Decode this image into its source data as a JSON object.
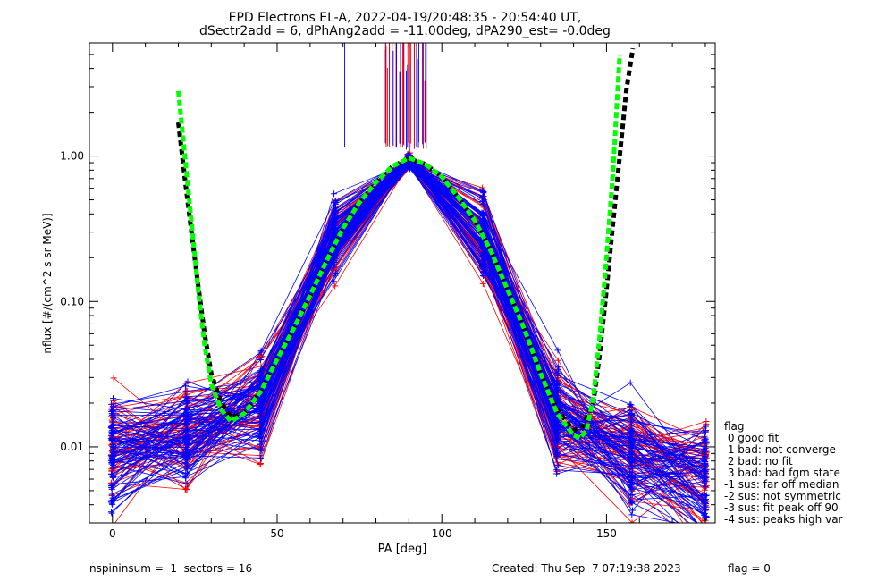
{
  "chart_data": {
    "type": "scatter",
    "title_lines": [
      "EPD Electrons EL-A, 2022-04-19/20:48:35 - 20:54:40 UT,",
      "dSectr2add = 6, dPhAng2add = -11.00deg, dPA290_est=  -0.0deg"
    ],
    "xlabel": "PA [deg]",
    "ylabel": "nflux [#/(cm^2 s sr MeV)]",
    "xlim": [
      -7,
      183
    ],
    "ylim": [
      0.003,
      6.0
    ],
    "yscale": "log",
    "x_ticks": [
      0,
      50,
      100,
      150
    ],
    "x_tick_labels": [
      "0",
      "50",
      "100",
      "150"
    ],
    "y_ticks": [
      0.01,
      0.1,
      1.0
    ],
    "y_tick_labels": [
      "0.01",
      "0.10",
      "1.00"
    ],
    "colors": {
      "series_a": "#ff0000",
      "series_b": "#0000ff",
      "fit_black": "#000000",
      "fit_green": "#00ff00"
    },
    "fit_black": {
      "x": [
        20,
        22,
        24,
        26,
        28,
        30,
        33,
        36,
        40,
        45,
        50,
        55,
        60,
        65,
        70,
        75,
        80,
        85,
        90,
        95,
        100,
        105,
        110,
        115,
        120,
        125,
        130,
        135,
        140,
        143,
        146,
        148,
        150,
        152,
        154,
        156,
        158
      ],
      "y": [
        1.7,
        0.7,
        0.3,
        0.13,
        0.06,
        0.032,
        0.02,
        0.016,
        0.017,
        0.024,
        0.04,
        0.065,
        0.11,
        0.19,
        0.32,
        0.48,
        0.66,
        0.85,
        0.96,
        0.88,
        0.72,
        0.52,
        0.36,
        0.22,
        0.12,
        0.065,
        0.032,
        0.018,
        0.013,
        0.014,
        0.02,
        0.045,
        0.12,
        0.35,
        1.0,
        2.8,
        5.5
      ]
    },
    "fit_green": {
      "x": [
        20,
        22,
        24,
        26,
        28,
        30,
        33,
        36,
        40,
        45,
        50,
        55,
        60,
        65,
        70,
        75,
        80,
        85,
        90,
        95,
        100,
        105,
        110,
        115,
        120,
        125,
        130,
        135,
        140,
        142,
        144,
        146,
        148,
        150,
        152,
        154
      ],
      "y": [
        2.8,
        1.0,
        0.35,
        0.12,
        0.05,
        0.027,
        0.018,
        0.015,
        0.017,
        0.024,
        0.04,
        0.065,
        0.11,
        0.19,
        0.32,
        0.48,
        0.66,
        0.85,
        0.97,
        0.88,
        0.72,
        0.52,
        0.36,
        0.22,
        0.12,
        0.065,
        0.032,
        0.017,
        0.012,
        0.0115,
        0.013,
        0.022,
        0.06,
        0.2,
        0.8,
        5.0
      ]
    },
    "legend_title": "flag",
    "legend": [
      " 0 good fit",
      " 1 bad: not converge",
      " 2 bad: no fit",
      " 3 bad: bad fgm state",
      "-1 sus: far off median",
      "-2 sus: not symmetric",
      "-3 sus: fit peak off 90",
      "-4 sus: peaks high var"
    ],
    "footer_left": "nspininsum =  1  sectors = 16",
    "footer_right": "Created: Thu Sep  7 07:19:38 2023",
    "footer_flag": "flag = 0"
  }
}
